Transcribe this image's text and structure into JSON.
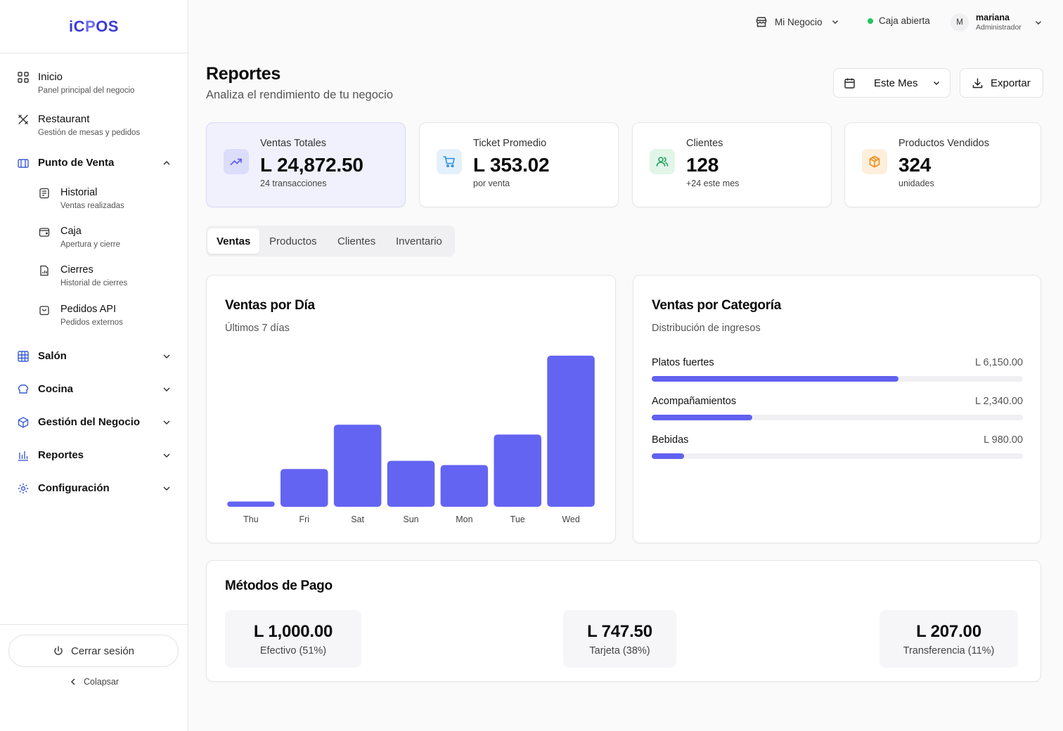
{
  "brand": {
    "logo_text": "iCPOS",
    "logo_prefix": "iC",
    "logo_mid": "P",
    "logo_suffix": "OS"
  },
  "sidebar": {
    "items": [
      {
        "title": "Inicio",
        "subtitle": "Panel principal del negocio",
        "icon": "grid-icon"
      },
      {
        "title": "Restaurant",
        "subtitle": "Gestión de mesas y pedidos",
        "icon": "utensils-icon"
      },
      {
        "title": "Punto de Venta",
        "icon": "store-icon",
        "expanded": true
      },
      {
        "title": "Salón",
        "icon": "table-grid-icon"
      },
      {
        "title": "Cocina",
        "icon": "chef-hat-icon"
      },
      {
        "title": "Gestión del Negocio",
        "icon": "box-icon"
      },
      {
        "title": "Reportes",
        "icon": "bar-chart-icon"
      },
      {
        "title": "Configuración",
        "icon": "gear-icon"
      }
    ],
    "sub_items": [
      {
        "title": "Historial",
        "subtitle": "Ventas realizadas",
        "icon": "receipt-icon"
      },
      {
        "title": "Caja",
        "subtitle": "Apertura y cierre",
        "icon": "wallet-icon"
      },
      {
        "title": "Cierres",
        "subtitle": "Historial de cierres",
        "icon": "file-chart-icon"
      },
      {
        "title": "Pedidos API",
        "subtitle": "Pedidos externos",
        "icon": "bag-icon"
      }
    ],
    "logout_label": "Cerrar sesión",
    "collapse_label": "Colapsar"
  },
  "topbar": {
    "business": "Mi Negocio",
    "register_status": "Caja abierta",
    "avatar_initial": "M",
    "user_name": "mariana",
    "user_role": "Administrador"
  },
  "header": {
    "title": "Reportes",
    "subtitle": "Analiza el rendimiento de tu negocio",
    "period_label": "Este Mes",
    "export_label": "Exportar"
  },
  "stats": [
    {
      "label": "Ventas Totales",
      "value": "L 24,872.50",
      "note": "24 transacciones",
      "icon": "trend-up-icon",
      "color": "#5b5bf0"
    },
    {
      "label": "Ticket Promedio",
      "value": "L 353.02",
      "note": "por venta",
      "icon": "cart-icon",
      "color": "#2b8ee8"
    },
    {
      "label": "Clientes",
      "value": "128",
      "note": "+24 este mes",
      "icon": "users-icon",
      "color": "#22a45d"
    },
    {
      "label": "Productos Vendidos",
      "value": "324",
      "note": "unidades",
      "icon": "package-icon",
      "color": "#f08c1a"
    }
  ],
  "tabs": [
    {
      "label": "Ventas",
      "active": true
    },
    {
      "label": "Productos",
      "active": false
    },
    {
      "label": "Clientes",
      "active": false
    },
    {
      "label": "Inventario",
      "active": false
    }
  ],
  "sales_by_day": {
    "title": "Ventas por Día",
    "subtitle": "Últimos 7 días"
  },
  "chart_data": {
    "type": "bar",
    "categories": [
      "Thu",
      "Fri",
      "Sat",
      "Sun",
      "Mon",
      "Tue",
      "Wed"
    ],
    "values": [
      160,
      1150,
      2500,
      1400,
      1270,
      2200,
      4600
    ],
    "title": "Ventas por Día",
    "subtitle": "Últimos 7 días",
    "xlabel": "",
    "ylabel": "",
    "ylim": [
      0,
      4600
    ],
    "grid": false,
    "color": "#6464f2"
  },
  "sales_by_category": {
    "title": "Ventas por Categoría",
    "subtitle": "Distribución de ingresos",
    "items": [
      {
        "name": "Platos fuertes",
        "value": "L 6,150.00",
        "fraction": 0.665
      },
      {
        "name": "Acompañamientos",
        "value": "L 2,340.00",
        "fraction": 0.27
      },
      {
        "name": "Bebidas",
        "value": "L 980.00",
        "fraction": 0.088
      }
    ]
  },
  "payment_methods": {
    "title": "Métodos de Pago",
    "items": [
      {
        "amount": "L 1,000.00",
        "label": "Efectivo (51%)"
      },
      {
        "amount": "L 747.50",
        "label": "Tarjeta (38%)"
      },
      {
        "amount": "L 207.00",
        "label": "Transferencia (11%)"
      }
    ]
  },
  "colors": {
    "accent": "#6464f2",
    "status_open": "#22c55e"
  }
}
